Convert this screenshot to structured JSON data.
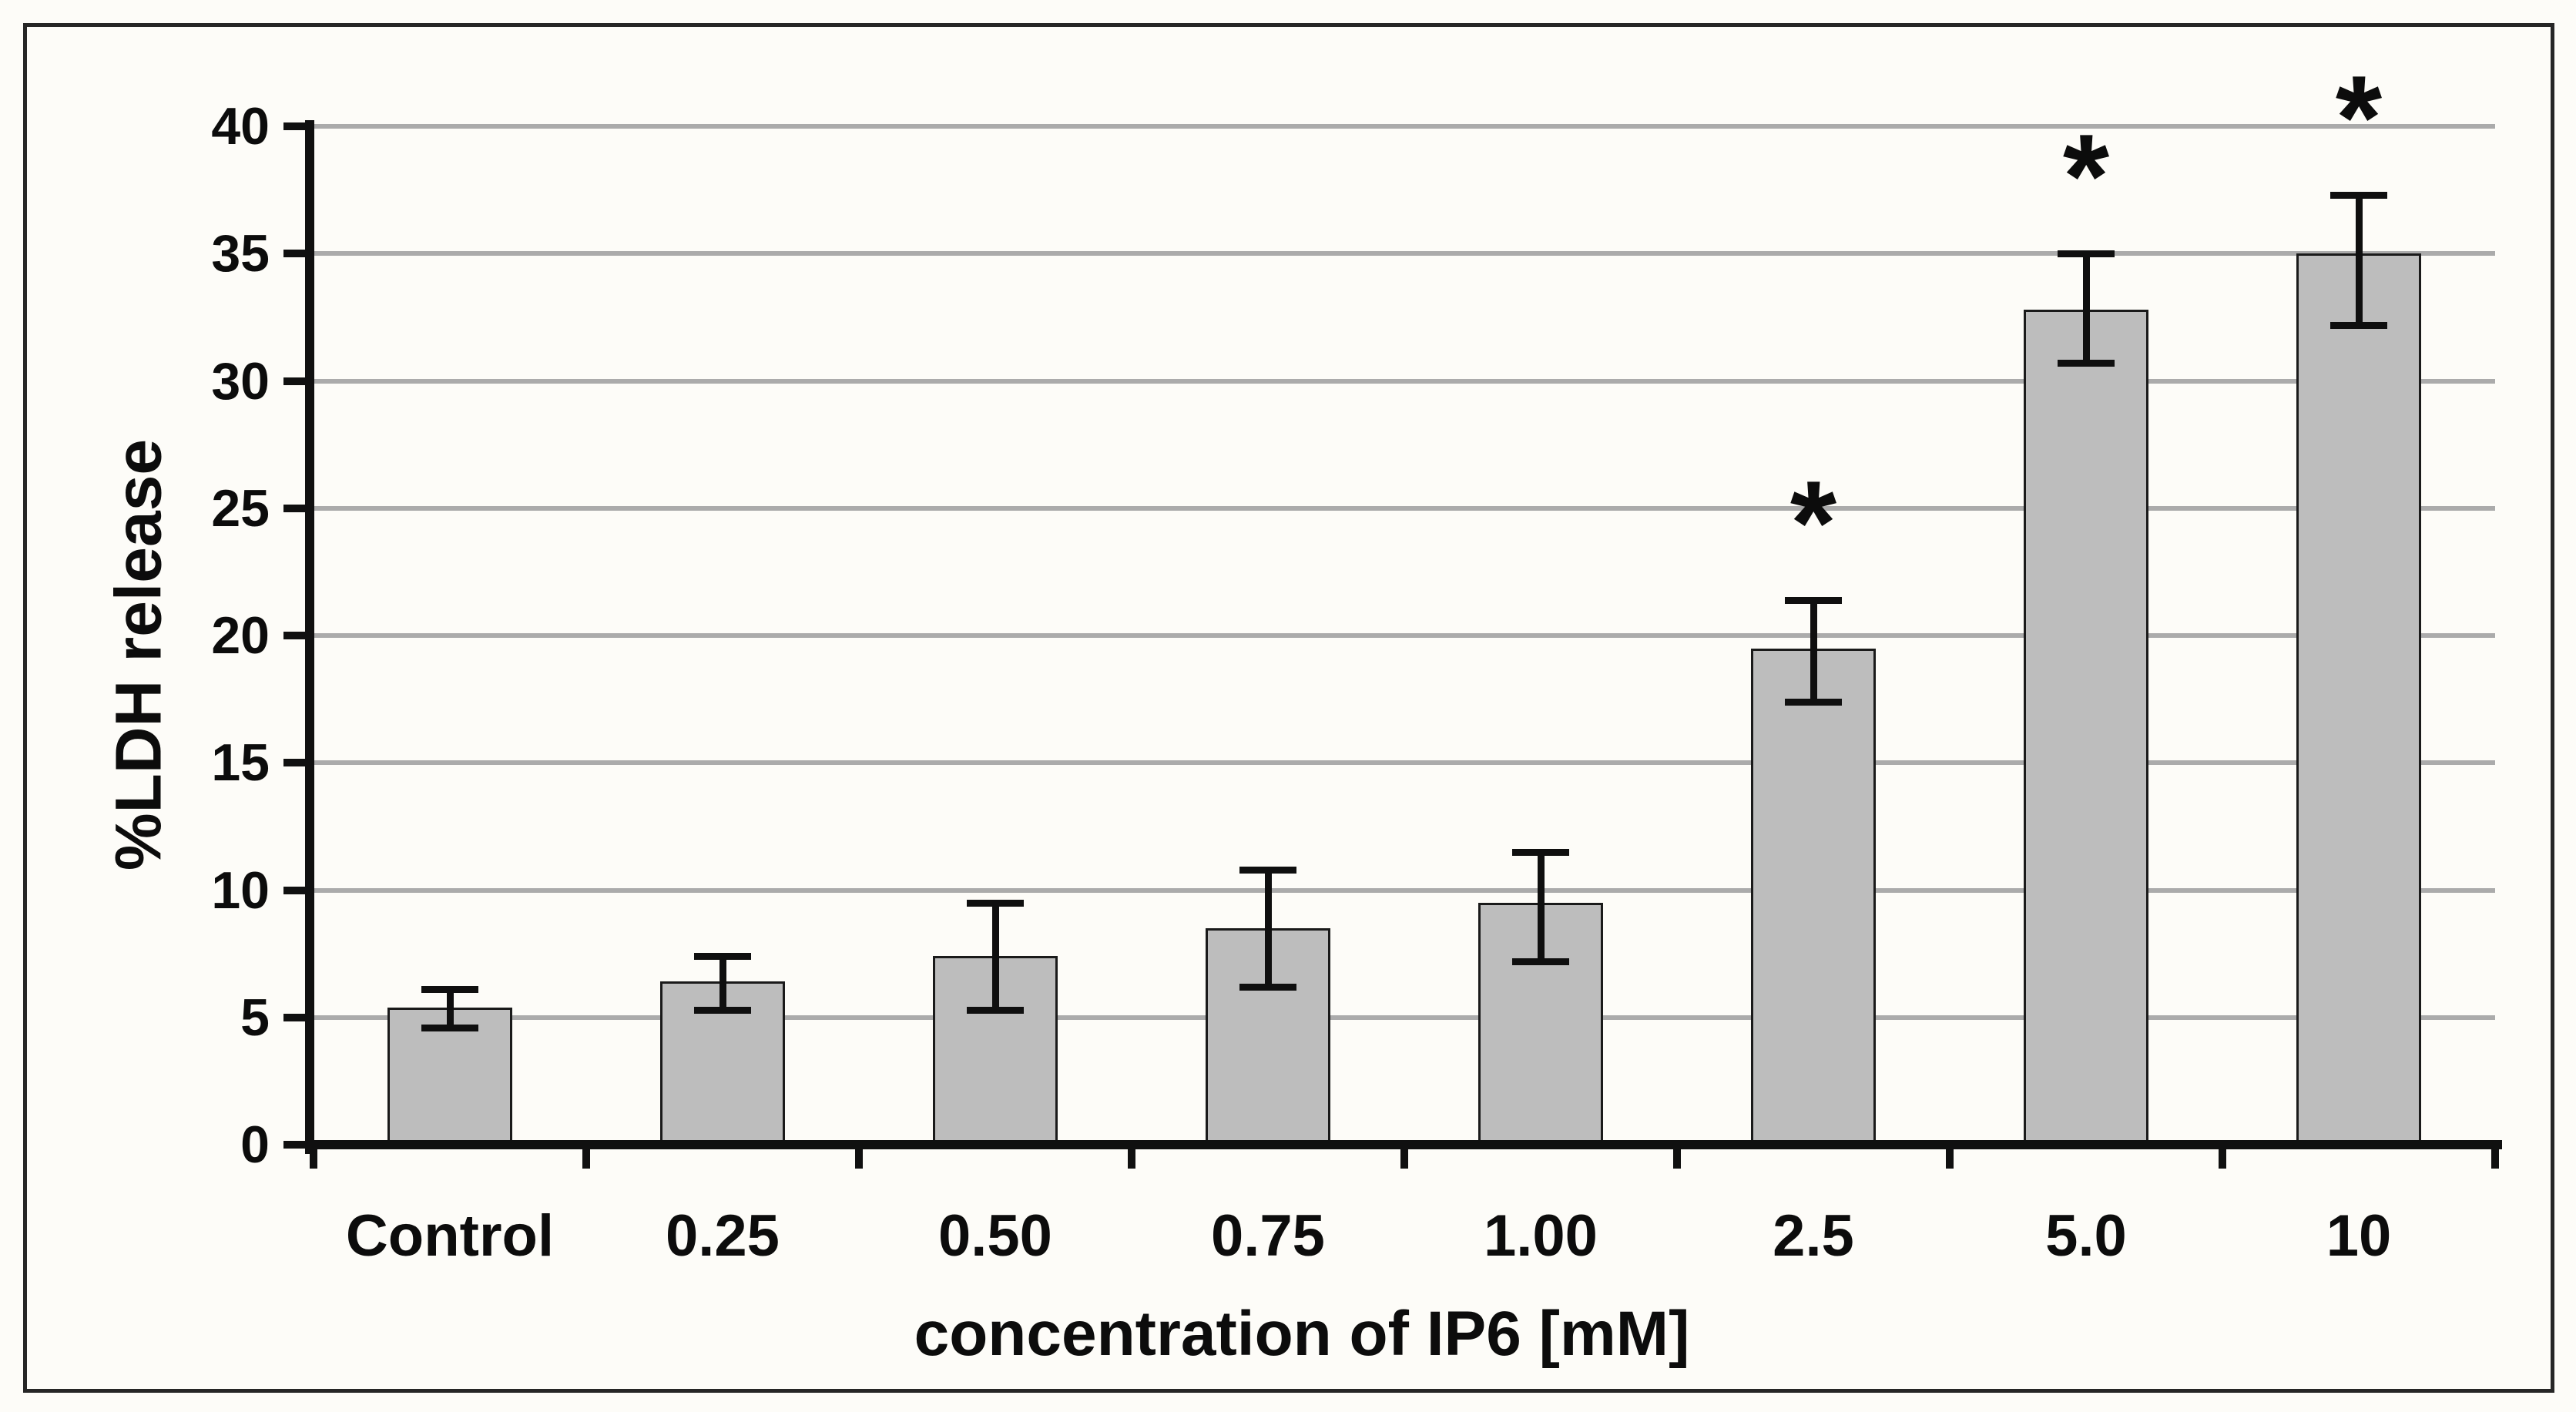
{
  "figure": {
    "y_axis_title": "%LDH release",
    "x_axis_title": "concentration of IP6 [mM]",
    "significance_symbol": "*"
  },
  "chart_data": {
    "type": "bar",
    "title": "",
    "categories": [
      "Control",
      "0.25",
      "0.50",
      "0.75",
      "1.00",
      "2.5",
      "5.0",
      "10"
    ],
    "values": [
      5.4,
      6.4,
      7.4,
      8.5,
      9.5,
      19.5,
      32.8,
      35.0
    ],
    "error_high": [
      6.1,
      7.4,
      9.5,
      10.8,
      11.5,
      21.4,
      35.0,
      37.3
    ],
    "error_low": [
      4.6,
      5.3,
      5.3,
      6.2,
      7.2,
      17.4,
      30.7,
      32.2
    ],
    "significance": [
      "",
      "",
      "",
      "",
      "",
      "*",
      "*",
      "*"
    ],
    "xlabel": "concentration of IP6 [mM]",
    "ylabel": "%LDH release",
    "ylim": [
      0,
      40
    ],
    "yticks": [
      0,
      5,
      10,
      15,
      20,
      25,
      30,
      35,
      40
    ],
    "grid": "horizontal-gridlines-on",
    "legend": "none",
    "bar_color": "#bdbdbd",
    "bar_border_color": "#1a1a1a",
    "gridline_color": "#ababab",
    "axis_color": "#101010",
    "background_color": "#fdfcf8",
    "frame_border_color": "#262626"
  }
}
